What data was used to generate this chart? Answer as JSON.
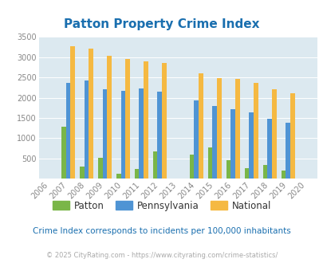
{
  "title": "Patton Property Crime Index",
  "years": [
    2006,
    2007,
    2008,
    2009,
    2010,
    2011,
    2012,
    2013,
    2014,
    2015,
    2016,
    2017,
    2018,
    2019,
    2020
  ],
  "patton": [
    0,
    1290,
    300,
    510,
    130,
    250,
    670,
    0,
    590,
    780,
    460,
    270,
    350,
    195,
    0
  ],
  "pennsylvania": [
    0,
    2370,
    2430,
    2200,
    2170,
    2230,
    2150,
    0,
    1940,
    1800,
    1710,
    1640,
    1490,
    1390,
    0
  ],
  "national": [
    0,
    3260,
    3200,
    3040,
    2950,
    2900,
    2860,
    0,
    2600,
    2490,
    2470,
    2370,
    2210,
    2110,
    0
  ],
  "patton_color": "#7ab648",
  "penn_color": "#4f94d4",
  "national_color": "#f5b942",
  "bg_color": "#dce9f0",
  "ylim": [
    0,
    3500
  ],
  "yticks": [
    0,
    500,
    1000,
    1500,
    2000,
    2500,
    3000,
    3500
  ],
  "subtitle": "Crime Index corresponds to incidents per 100,000 inhabitants",
  "footer": "© 2025 CityRating.com - https://www.cityrating.com/crime-statistics/",
  "bar_width": 0.25,
  "title_color": "#1a6faf",
  "subtitle_color": "#1a6faf",
  "footer_color": "#aaaaaa"
}
